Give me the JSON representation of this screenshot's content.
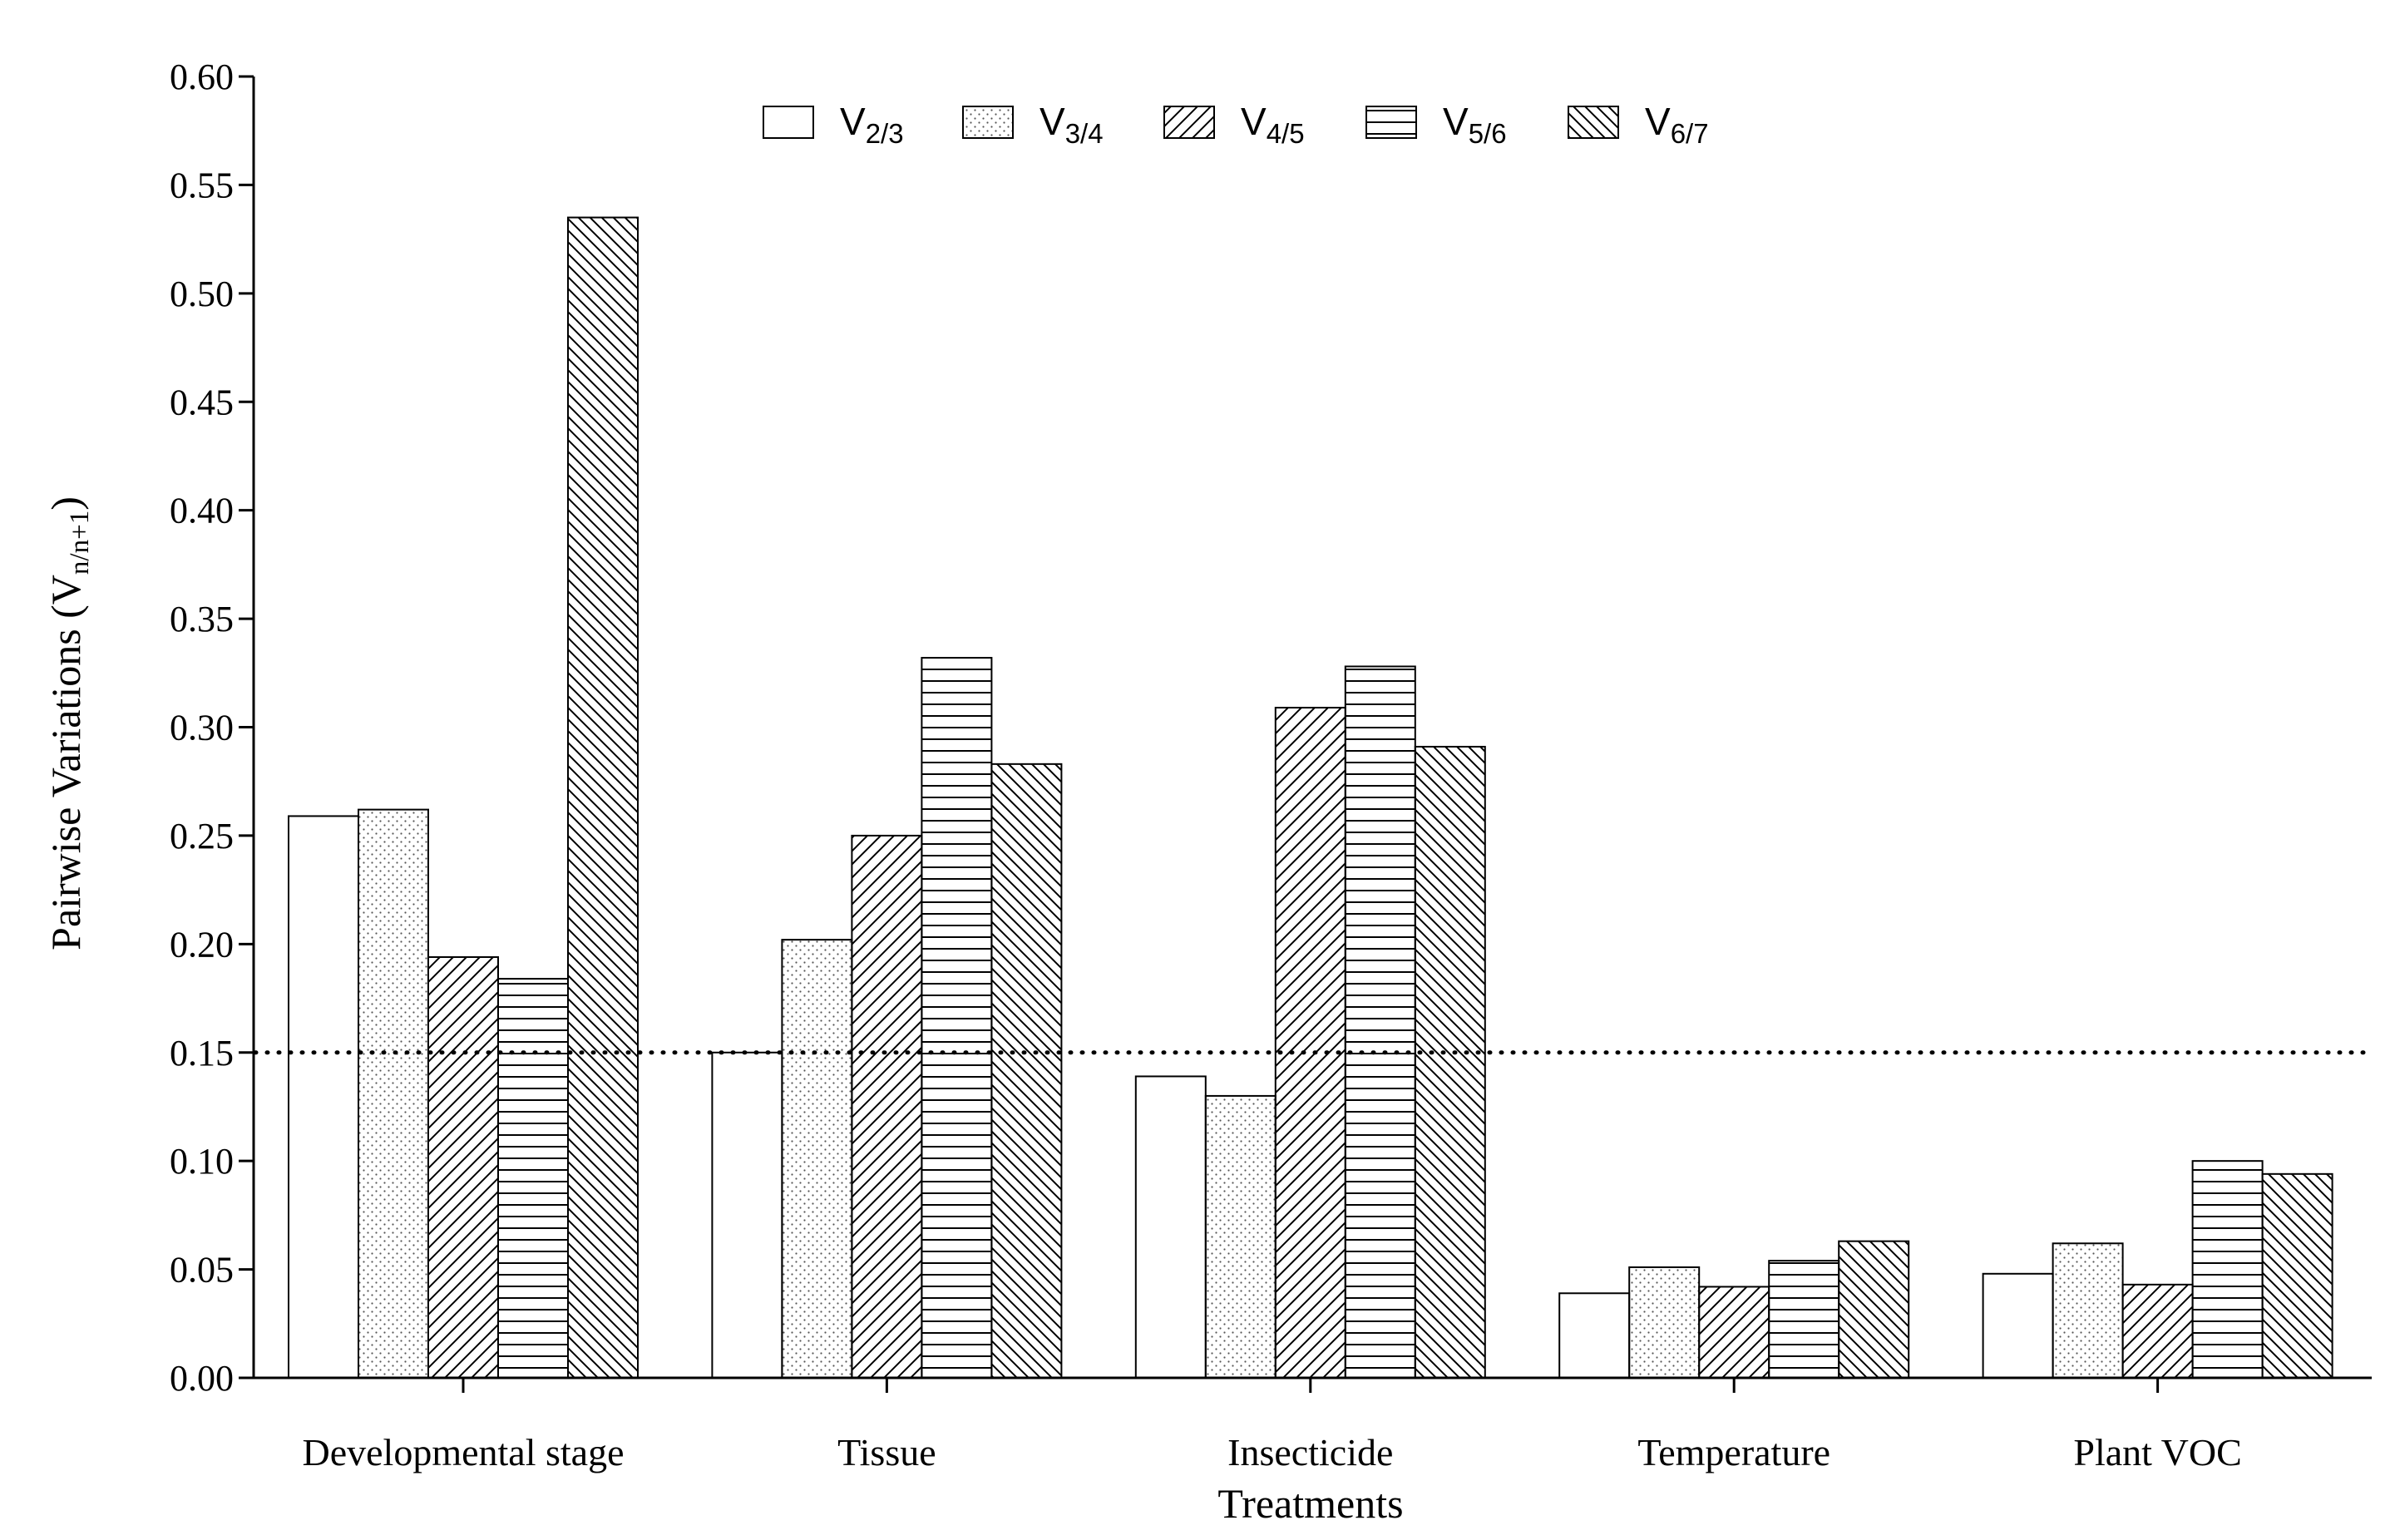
{
  "chart_data": {
    "type": "bar",
    "title": "",
    "xlabel": "Treatments",
    "ylabel": "Pairwise Variations (V",
    "ylabel_sub": "n/n+1",
    "ylabel_close": ")",
    "ylim": [
      0,
      0.6
    ],
    "yticks": [
      "0.00",
      "0.05",
      "0.10",
      "0.15",
      "0.20",
      "0.25",
      "0.30",
      "0.35",
      "0.40",
      "0.45",
      "0.50",
      "0.55",
      "0.60"
    ],
    "threshold": 0.15,
    "legend_position": "top-center",
    "categories": [
      "Developmental stage",
      "Tissue",
      "Insecticide",
      "Temperature",
      "Plant VOC"
    ],
    "series": [
      {
        "name": "V",
        "sub": "2/3",
        "pattern": "empty",
        "values": [
          0.259,
          0.15,
          0.139,
          0.039,
          0.048
        ]
      },
      {
        "name": "V",
        "sub": "3/4",
        "pattern": "dots",
        "values": [
          0.262,
          0.202,
          0.13,
          0.051,
          0.062
        ]
      },
      {
        "name": "V",
        "sub": "4/5",
        "pattern": "diag-right",
        "values": [
          0.194,
          0.25,
          0.309,
          0.042,
          0.043
        ]
      },
      {
        "name": "V",
        "sub": "5/6",
        "pattern": "horizontal",
        "values": [
          0.184,
          0.332,
          0.328,
          0.054,
          0.1
        ]
      },
      {
        "name": "V",
        "sub": "6/7",
        "pattern": "diag-left",
        "values": [
          0.535,
          0.283,
          0.291,
          0.063,
          0.094
        ]
      }
    ]
  }
}
